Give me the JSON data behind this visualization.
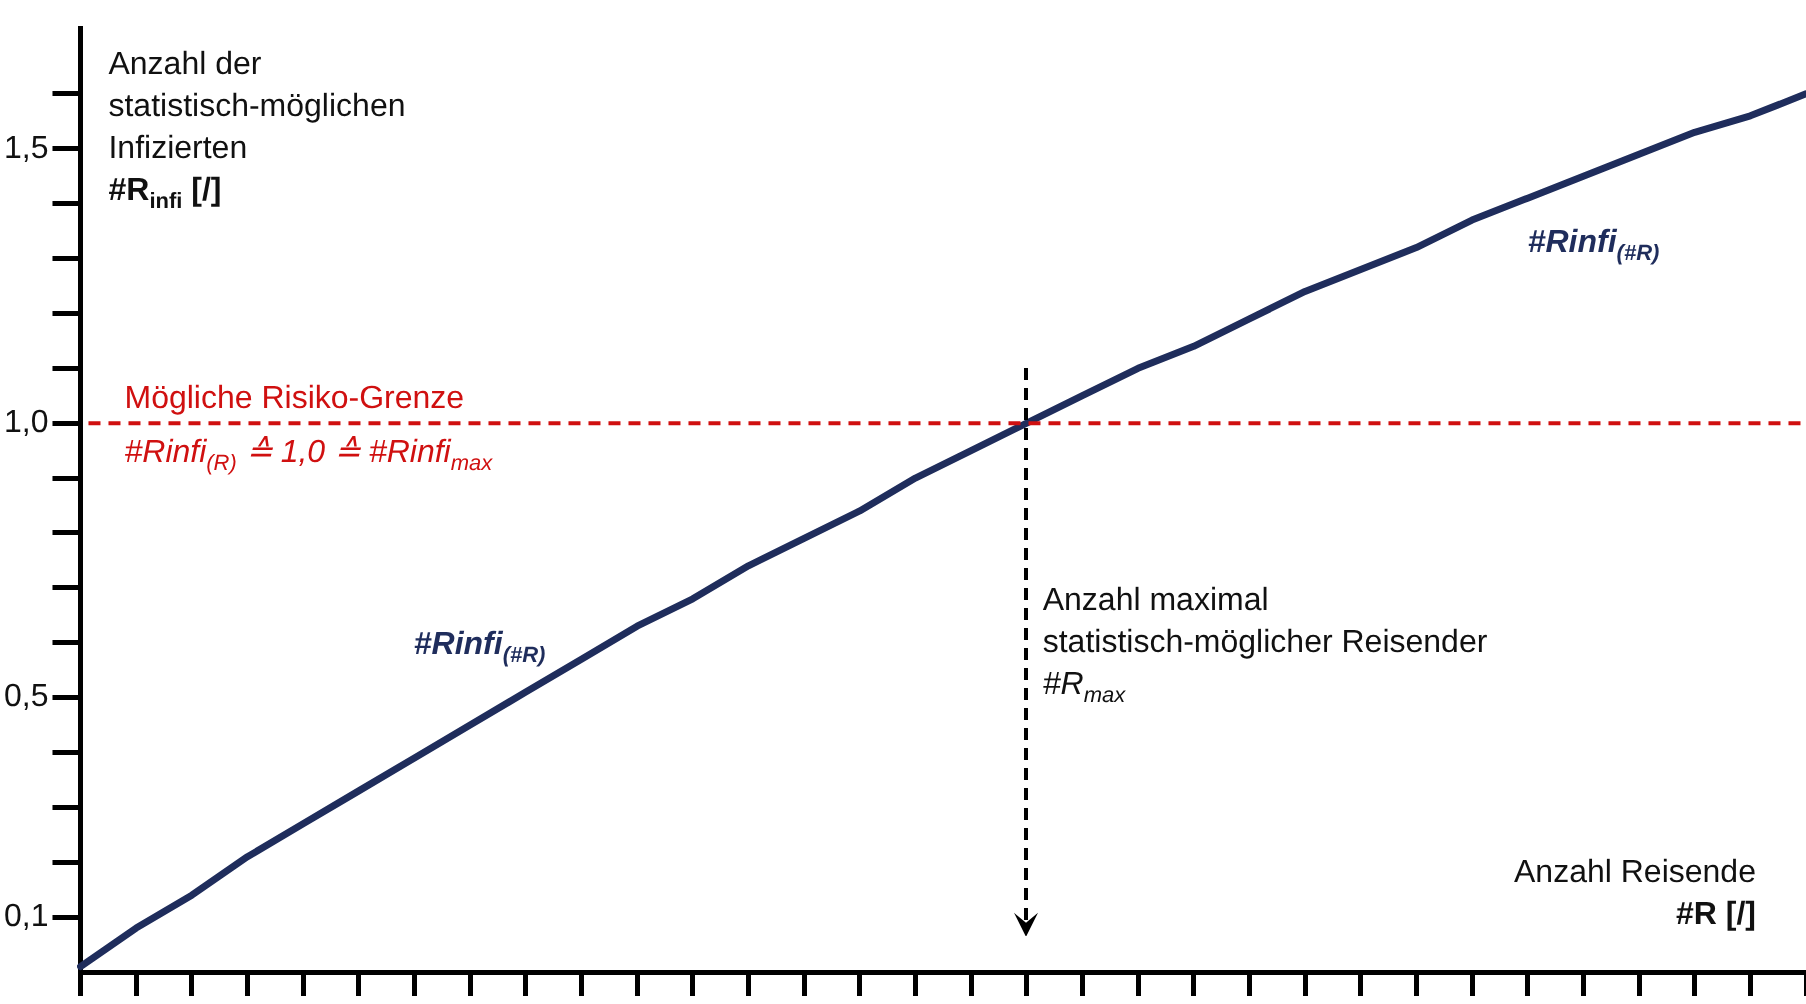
{
  "chart_data": {
    "type": "line",
    "xlabel": "Anzahl Reisende\n#R [/]",
    "ylabel": "Anzahl der\nstatistisch-möglichen\nInfizierten\n#R$_{infi}$ [/]",
    "categories": [
      null,
      null,
      null,
      null,
      null,
      null,
      null,
      null,
      null,
      null,
      null,
      null,
      null,
      null,
      null,
      null,
      null,
      null,
      null,
      null,
      null,
      null,
      null,
      null,
      null,
      null,
      null,
      null,
      null,
      null,
      null,
      null
    ],
    "series": [
      {
        "name": "#Rinfi$_{(#R)}$",
        "color": "#1f2d5c",
        "values": [
          0.01,
          0.08,
          0.14,
          0.21,
          0.27,
          0.33,
          0.39,
          0.45,
          0.51,
          0.57,
          0.63,
          0.68,
          0.74,
          0.79,
          0.84,
          0.9,
          0.95,
          1.0,
          1.05,
          1.1,
          1.14,
          1.19,
          1.24,
          1.28,
          1.32,
          1.37,
          1.41,
          1.45,
          1.49,
          1.53,
          1.56,
          1.6
        ]
      }
    ],
    "ylim": [
      0,
      1.72
    ],
    "yticks": [
      {
        "value": 0.1,
        "label": "0,1"
      },
      {
        "value": 0.2,
        "label": null
      },
      {
        "value": 0.3,
        "label": null
      },
      {
        "value": 0.4,
        "label": null
      },
      {
        "value": 0.5,
        "label": "0,5"
      },
      {
        "value": 0.6,
        "label": null
      },
      {
        "value": 0.7,
        "label": null
      },
      {
        "value": 0.8,
        "label": null
      },
      {
        "value": 0.9,
        "label": null
      },
      {
        "value": 1.0,
        "label": "1,0"
      },
      {
        "value": 1.1,
        "label": null
      },
      {
        "value": 1.2,
        "label": null
      },
      {
        "value": 1.3,
        "label": null
      },
      {
        "value": 1.4,
        "label": null
      },
      {
        "value": 1.5,
        "label": "1,5"
      },
      {
        "value": 1.6,
        "label": null
      }
    ],
    "ref_lines": [
      {
        "axis": "y",
        "value": 1.0,
        "label": "Mögliche Risiko-Grenze\n#Rinfi$_{(R)}$ ≙ 1,0 ≙ #Rinfi$_{max}$",
        "color": "#d01010",
        "line_style": "dashed"
      }
    ],
    "annotations": [
      "Anzahl maximal\nstatistisch-möglicher Reisender\n#R$_{max}$"
    ],
    "grid": false,
    "legend": false,
    "marker": "none",
    "line_style": "solid",
    "tick_labels": "y"
  }
}
